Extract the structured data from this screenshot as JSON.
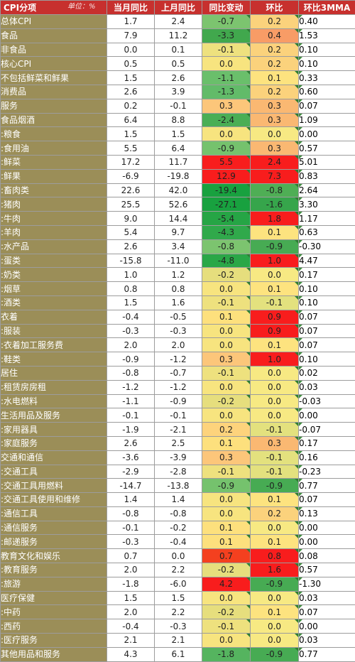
{
  "header": {
    "category": "CPI分项",
    "unit": "单位：%",
    "columns": [
      "当月同比",
      "上月同比",
      "同比变动",
      "环比",
      "环比3MMA"
    ]
  },
  "rows": [
    {
      "label": "总体CPI",
      "cur": "1.7",
      "prev": "2.4",
      "chg": "-0.7",
      "mom": "0.2",
      "mma": "0.40",
      "chg_color": "#7cc46f",
      "mom_color": "#fbd27c",
      "group_start": false
    },
    {
      "label": "食品",
      "cur": "7.9",
      "prev": "11.2",
      "chg": "-3.3",
      "mom": "0.4",
      "mma": "1.53",
      "chg_color": "#41a84d",
      "mom_color": "#f89c66",
      "group_start": false
    },
    {
      "label": "非食品",
      "cur": "0.0",
      "prev": "0.1",
      "chg": "-0.1",
      "mom": "0.2",
      "mma": "0.10",
      "chg_color": "#eee17e",
      "mom_color": "#fbd27c",
      "group_start": false
    },
    {
      "label": "核心CPI",
      "cur": "0.5",
      "prev": "0.5",
      "chg": "0.0",
      "mom": "0.2",
      "mma": "0.10",
      "chg_color": "#f7e47f",
      "mom_color": "#fbd27c",
      "group_start": true
    },
    {
      "label": "不包括鲜菜和鲜果",
      "cur": "1.5",
      "prev": "2.6",
      "chg": "-1.1",
      "mom": "0.1",
      "mma": "0.33",
      "chg_color": "#6abf6b",
      "mom_color": "#fde37f",
      "group_start": false
    },
    {
      "label": "消费品",
      "cur": "2.6",
      "prev": "3.9",
      "chg": "-1.3",
      "mom": "0.2",
      "mma": "0.60",
      "chg_color": "#62bb69",
      "mom_color": "#fbd27c",
      "group_start": false
    },
    {
      "label": "服务",
      "cur": "0.2",
      "prev": "-0.1",
      "chg": "0.3",
      "mom": "0.3",
      "mma": "0.07",
      "chg_color": "#fcc67a",
      "mom_color": "#fab872",
      "group_start": false
    },
    {
      "label": "食品烟酒",
      "cur": "6.4",
      "prev": "8.8",
      "chg": "-2.4",
      "mom": "0.3",
      "mma": "1.09",
      "chg_color": "#4aae55",
      "mom_color": "#fab872",
      "group_start": true
    },
    {
      "label": ":粮食",
      "cur": "1.5",
      "prev": "1.5",
      "chg": "0.0",
      "mom": "0.0",
      "mma": "0.00",
      "chg_color": "#f7e47f",
      "mom_color": "#f7e983",
      "group_start": false
    },
    {
      "label": ":食用油",
      "cur": "5.5",
      "prev": "6.4",
      "chg": "-0.9",
      "mom": "0.3",
      "mma": "0.57",
      "chg_color": "#75c26d",
      "mom_color": "#fab872",
      "group_start": false
    },
    {
      "label": ":鲜菜",
      "cur": "17.2",
      "prev": "11.7",
      "chg": "5.5",
      "mom": "2.4",
      "mma": "5.01",
      "chg_color": "#f81d1d",
      "mom_color": "#f81d1d",
      "group_start": false
    },
    {
      "label": ":鲜果",
      "cur": "-6.9",
      "prev": "-19.8",
      "chg": "12.9",
      "mom": "7.3",
      "mma": "0.83",
      "chg_color": "#f81d1d",
      "mom_color": "#f81d1d",
      "group_start": false
    },
    {
      "label": ":畜肉类",
      "cur": "22.6",
      "prev": "42.0",
      "chg": "-19.4",
      "mom": "-0.8",
      "mma": "2.64",
      "chg_color": "#18a13f",
      "mom_color": "#4fae55",
      "group_start": false
    },
    {
      "label": ":猪肉",
      "cur": "25.5",
      "prev": "52.6",
      "chg": "-27.1",
      "mom": "-1.6",
      "mma": "3.30",
      "chg_color": "#18a13f",
      "mom_color": "#36a54b",
      "group_start": false
    },
    {
      "label": ":牛肉",
      "cur": "9.0",
      "prev": "14.4",
      "chg": "-5.4",
      "mom": "1.8",
      "mma": "1.17",
      "chg_color": "#26a545",
      "mom_color": "#f81d1d",
      "group_start": false
    },
    {
      "label": ":羊肉",
      "cur": "5.4",
      "prev": "9.7",
      "chg": "-4.3",
      "mom": "0.1",
      "mma": "0.63",
      "chg_color": "#30a94b",
      "mom_color": "#fde37f",
      "group_start": false
    },
    {
      "label": ":水产品",
      "cur": "2.6",
      "prev": "3.4",
      "chg": "-0.8",
      "mom": "-0.9",
      "mma": "-0.30",
      "chg_color": "#7cc46f",
      "mom_color": "#47ab53",
      "group_start": false
    },
    {
      "label": ":蛋类",
      "cur": "-15.8",
      "prev": "-11.0",
      "chg": "-4.8",
      "mom": "1.0",
      "mma": "4.47",
      "chg_color": "#2aa747",
      "mom_color": "#f81d1d",
      "group_start": false
    },
    {
      "label": ":奶类",
      "cur": "1.0",
      "prev": "1.2",
      "chg": "-0.2",
      "mom": "0.0",
      "mma": "0.17",
      "chg_color": "#e6de7d",
      "mom_color": "#f7e983",
      "group_start": false
    },
    {
      "label": ":烟草",
      "cur": "0.8",
      "prev": "0.8",
      "chg": "0.0",
      "mom": "0.1",
      "mma": "0.10",
      "chg_color": "#f7e47f",
      "mom_color": "#fde37f",
      "group_start": false
    },
    {
      "label": ":酒类",
      "cur": "1.5",
      "prev": "1.6",
      "chg": "-0.1",
      "mom": "-0.1",
      "mma": "0.10",
      "chg_color": "#eee17e",
      "mom_color": "#e3e17e",
      "group_start": false
    },
    {
      "label": "衣着",
      "cur": "-0.4",
      "prev": "-0.5",
      "chg": "0.1",
      "mom": "0.9",
      "mma": "0.07",
      "chg_color": "#fde07d",
      "mom_color": "#f81d1d",
      "group_start": true
    },
    {
      "label": ":服装",
      "cur": "-0.3",
      "prev": "-0.3",
      "chg": "0.0",
      "mom": "0.9",
      "mma": "0.07",
      "chg_color": "#f7e47f",
      "mom_color": "#f81d1d",
      "group_start": false
    },
    {
      "label": ":衣着加工服务费",
      "cur": "2.0",
      "prev": "2.0",
      "chg": "0.0",
      "mom": "0.1",
      "mma": "0.07",
      "chg_color": "#f7e47f",
      "mom_color": "#fde37f",
      "group_start": false
    },
    {
      "label": ":鞋类",
      "cur": "-0.9",
      "prev": "-1.2",
      "chg": "0.3",
      "mom": "1.0",
      "mma": "0.10",
      "chg_color": "#fcc67a",
      "mom_color": "#f81d1d",
      "group_start": false
    },
    {
      "label": "居住",
      "cur": "-0.8",
      "prev": "-0.7",
      "chg": "-0.1",
      "mom": "0.0",
      "mma": "0.02",
      "chg_color": "#eee17e",
      "mom_color": "#f7e983",
      "group_start": true
    },
    {
      "label": ":租赁房房租",
      "cur": "-1.2",
      "prev": "-1.2",
      "chg": "0.0",
      "mom": "0.0",
      "mma": "0.03",
      "chg_color": "#f7e47f",
      "mom_color": "#f7e983",
      "group_start": false
    },
    {
      "label": ":水电燃料",
      "cur": "-1.1",
      "prev": "-0.9",
      "chg": "-0.2",
      "mom": "0.0",
      "mma": "-0.03",
      "chg_color": "#e6de7d",
      "mom_color": "#f7e983",
      "group_start": false
    },
    {
      "label": "生活用品及服务",
      "cur": "-0.1",
      "prev": "-0.1",
      "chg": "0.0",
      "mom": "0.0",
      "mma": "0.00",
      "chg_color": "#f7e47f",
      "mom_color": "#f7e983",
      "group_start": true
    },
    {
      "label": ":家用器具",
      "cur": "-1.9",
      "prev": "-2.1",
      "chg": "0.2",
      "mom": "-0.1",
      "mma": "-0.07",
      "chg_color": "#fdd37c",
      "mom_color": "#e3e17e",
      "group_start": false
    },
    {
      "label": ":家庭服务",
      "cur": "2.6",
      "prev": "2.5",
      "chg": "0.1",
      "mom": "0.3",
      "mma": "0.17",
      "chg_color": "#fde07d",
      "mom_color": "#fab872",
      "group_start": false
    },
    {
      "label": "交通和通信",
      "cur": "-3.6",
      "prev": "-3.9",
      "chg": "0.3",
      "mom": "-0.1",
      "mma": "0.16",
      "chg_color": "#fcc67a",
      "mom_color": "#e3e17e",
      "group_start": true
    },
    {
      "label": ":交通工具",
      "cur": "-2.9",
      "prev": "-2.8",
      "chg": "-0.1",
      "mom": "-0.1",
      "mma": "-0.23",
      "chg_color": "#eee17e",
      "mom_color": "#e3e17e",
      "group_start": false
    },
    {
      "label": ":交通工具用燃料",
      "cur": "-14.7",
      "prev": "-13.8",
      "chg": "-0.9",
      "mom": "-0.9",
      "mma": "0.77",
      "chg_color": "#75c26d",
      "mom_color": "#47ab53",
      "group_start": false
    },
    {
      "label": ":交通工具使用和维修",
      "cur": "1.4",
      "prev": "1.4",
      "chg": "0.0",
      "mom": "0.1",
      "mma": "0.07",
      "chg_color": "#f7e47f",
      "mom_color": "#fde37f",
      "group_start": false
    },
    {
      "label": ":通信工具",
      "cur": "-0.8",
      "prev": "-0.8",
      "chg": "0.0",
      "mom": "0.2",
      "mma": "0.13",
      "chg_color": "#f7e47f",
      "mom_color": "#fbd27c",
      "group_start": false
    },
    {
      "label": ":通信服务",
      "cur": "-0.1",
      "prev": "-0.2",
      "chg": "0.1",
      "mom": "0.0",
      "mma": "0.00",
      "chg_color": "#fde07d",
      "mom_color": "#f7e983",
      "group_start": false
    },
    {
      "label": ":邮递服务",
      "cur": "-0.3",
      "prev": "-0.4",
      "chg": "0.1",
      "mom": "0.1",
      "mma": "0.00",
      "chg_color": "#fde07d",
      "mom_color": "#fde37f",
      "group_start": false
    },
    {
      "label": "教育文化和娱乐",
      "cur": "0.7",
      "prev": "0.0",
      "chg": "0.7",
      "mom": "0.8",
      "mma": "0.08",
      "chg_color": "#f4401f",
      "mom_color": "#f81d1d",
      "group_start": true
    },
    {
      "label": ":教育服务",
      "cur": "2.0",
      "prev": "2.2",
      "chg": "-0.2",
      "mom": "1.6",
      "mma": "0.57",
      "chg_color": "#e6de7d",
      "mom_color": "#f81d1d",
      "group_start": false
    },
    {
      "label": ":旅游",
      "cur": "-1.8",
      "prev": "-6.0",
      "chg": "4.2",
      "mom": "-0.9",
      "mma": "-1.30",
      "chg_color": "#f81d1d",
      "mom_color": "#47ab53",
      "group_start": false
    },
    {
      "label": "医疗保健",
      "cur": "1.5",
      "prev": "1.5",
      "chg": "0.0",
      "mom": "0.0",
      "mma": "0.03",
      "chg_color": "#f7e47f",
      "mom_color": "#f7e983",
      "group_start": true
    },
    {
      "label": ":中药",
      "cur": "2.0",
      "prev": "2.2",
      "chg": "-0.2",
      "mom": "0.1",
      "mma": "0.07",
      "chg_color": "#e6de7d",
      "mom_color": "#fde37f",
      "group_start": false
    },
    {
      "label": ":西药",
      "cur": "-0.4",
      "prev": "-0.3",
      "chg": "-0.1",
      "mom": "0.0",
      "mma": "0.00",
      "chg_color": "#eee17e",
      "mom_color": "#f7e983",
      "group_start": false
    },
    {
      "label": ":医疗服务",
      "cur": "2.1",
      "prev": "2.1",
      "chg": "0.0",
      "mom": "0.0",
      "mma": "0.03",
      "chg_color": "#f7e47f",
      "mom_color": "#f7e983",
      "group_start": false
    },
    {
      "label": "其他用品和服务",
      "cur": "4.3",
      "prev": "6.1",
      "chg": "-1.8",
      "mom": "-0.9",
      "mma": "0.77",
      "chg_color": "#55b45f",
      "mom_color": "#47ab53",
      "group_start": true
    }
  ]
}
